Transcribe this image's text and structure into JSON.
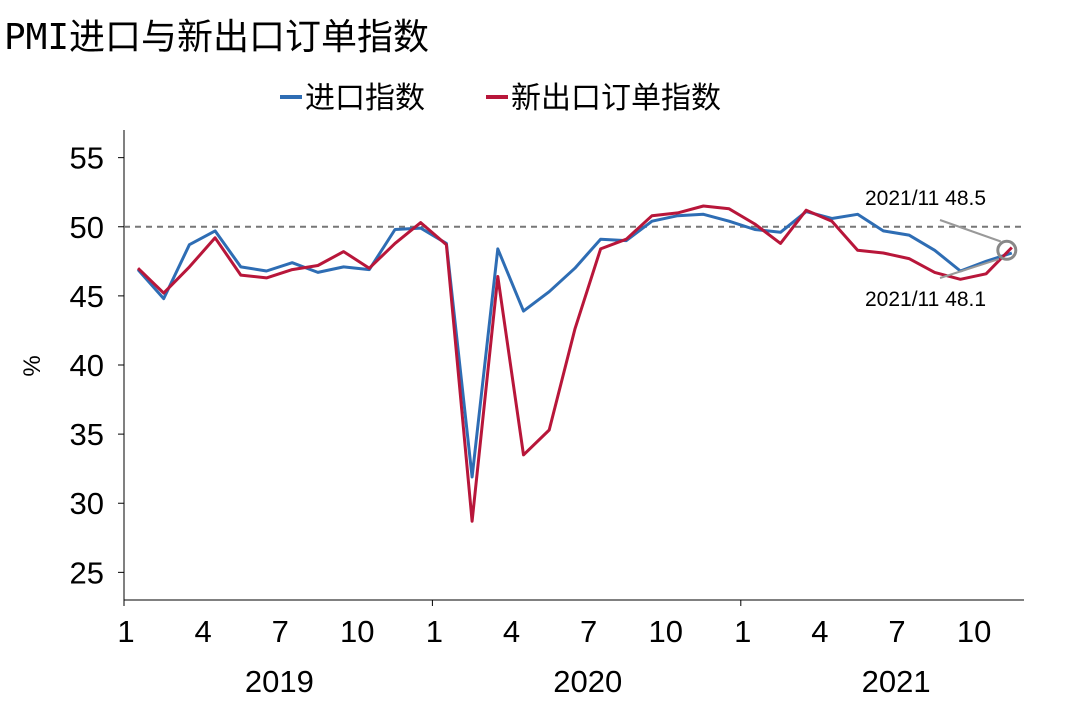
{
  "title": "PMI进口与新出口订单指数",
  "chart_data": {
    "type": "line",
    "title": "PMI进口与新出口订单指数",
    "ylabel": "%",
    "ylim": [
      23,
      57
    ],
    "yticks": [
      25,
      30,
      35,
      40,
      45,
      50,
      55
    ],
    "reference_line": 50,
    "x": [
      "2019-01",
      "2019-02",
      "2019-03",
      "2019-04",
      "2019-05",
      "2019-06",
      "2019-07",
      "2019-08",
      "2019-09",
      "2019-10",
      "2019-11",
      "2019-12",
      "2020-01",
      "2020-02",
      "2020-03",
      "2020-04",
      "2020-05",
      "2020-06",
      "2020-07",
      "2020-08",
      "2020-09",
      "2020-10",
      "2020-11",
      "2020-12",
      "2021-01",
      "2021-02",
      "2021-03",
      "2021-04",
      "2021-05",
      "2021-06",
      "2021-07",
      "2021-08",
      "2021-09",
      "2021-10",
      "2021-11"
    ],
    "x_tick_labels": [
      {
        "x": "2019-01",
        "label": "1"
      },
      {
        "x": "2019-04",
        "label": "4"
      },
      {
        "x": "2019-07",
        "label": "7"
      },
      {
        "x": "2019-10",
        "label": "10"
      },
      {
        "x": "2020-01",
        "label": "1"
      },
      {
        "x": "2020-04",
        "label": "4"
      },
      {
        "x": "2020-07",
        "label": "7"
      },
      {
        "x": "2020-10",
        "label": "10"
      },
      {
        "x": "2021-01",
        "label": "1"
      },
      {
        "x": "2021-04",
        "label": "4"
      },
      {
        "x": "2021-07",
        "label": "7"
      },
      {
        "x": "2021-10",
        "label": "10"
      }
    ],
    "year_labels": [
      "2019",
      "2020",
      "2021"
    ],
    "legend_position": "top-center",
    "series": [
      {
        "name": "进口指数",
        "color": "#2e6db4",
        "values": [
          46.9,
          44.8,
          48.7,
          49.7,
          47.1,
          46.8,
          47.4,
          46.7,
          47.1,
          46.9,
          49.8,
          49.9,
          48.8,
          31.9,
          48.4,
          43.9,
          45.3,
          47.0,
          49.1,
          49.0,
          50.4,
          50.8,
          50.9,
          50.4,
          49.8,
          49.6,
          51.1,
          50.6,
          50.9,
          49.7,
          49.4,
          48.3,
          46.8,
          47.5,
          48.1
        ]
      },
      {
        "name": "新出口订单指数",
        "color": "#b8163a",
        "values": [
          47.0,
          45.2,
          47.1,
          49.2,
          46.5,
          46.3,
          46.9,
          47.2,
          48.2,
          47.0,
          48.8,
          50.3,
          48.7,
          28.7,
          46.4,
          33.5,
          35.3,
          42.6,
          48.4,
          49.1,
          50.8,
          51.0,
          51.5,
          51.3,
          50.2,
          48.8,
          51.2,
          50.4,
          48.3,
          48.1,
          47.7,
          46.7,
          46.2,
          46.6,
          48.5
        ]
      }
    ],
    "annotations": [
      {
        "text": "2021/11 48.5",
        "series": "新出口订单指数",
        "x": "2021-11",
        "value": 48.5
      },
      {
        "text": "2021/11 48.1",
        "series": "进口指数",
        "x": "2021-11",
        "value": 48.1
      }
    ]
  }
}
